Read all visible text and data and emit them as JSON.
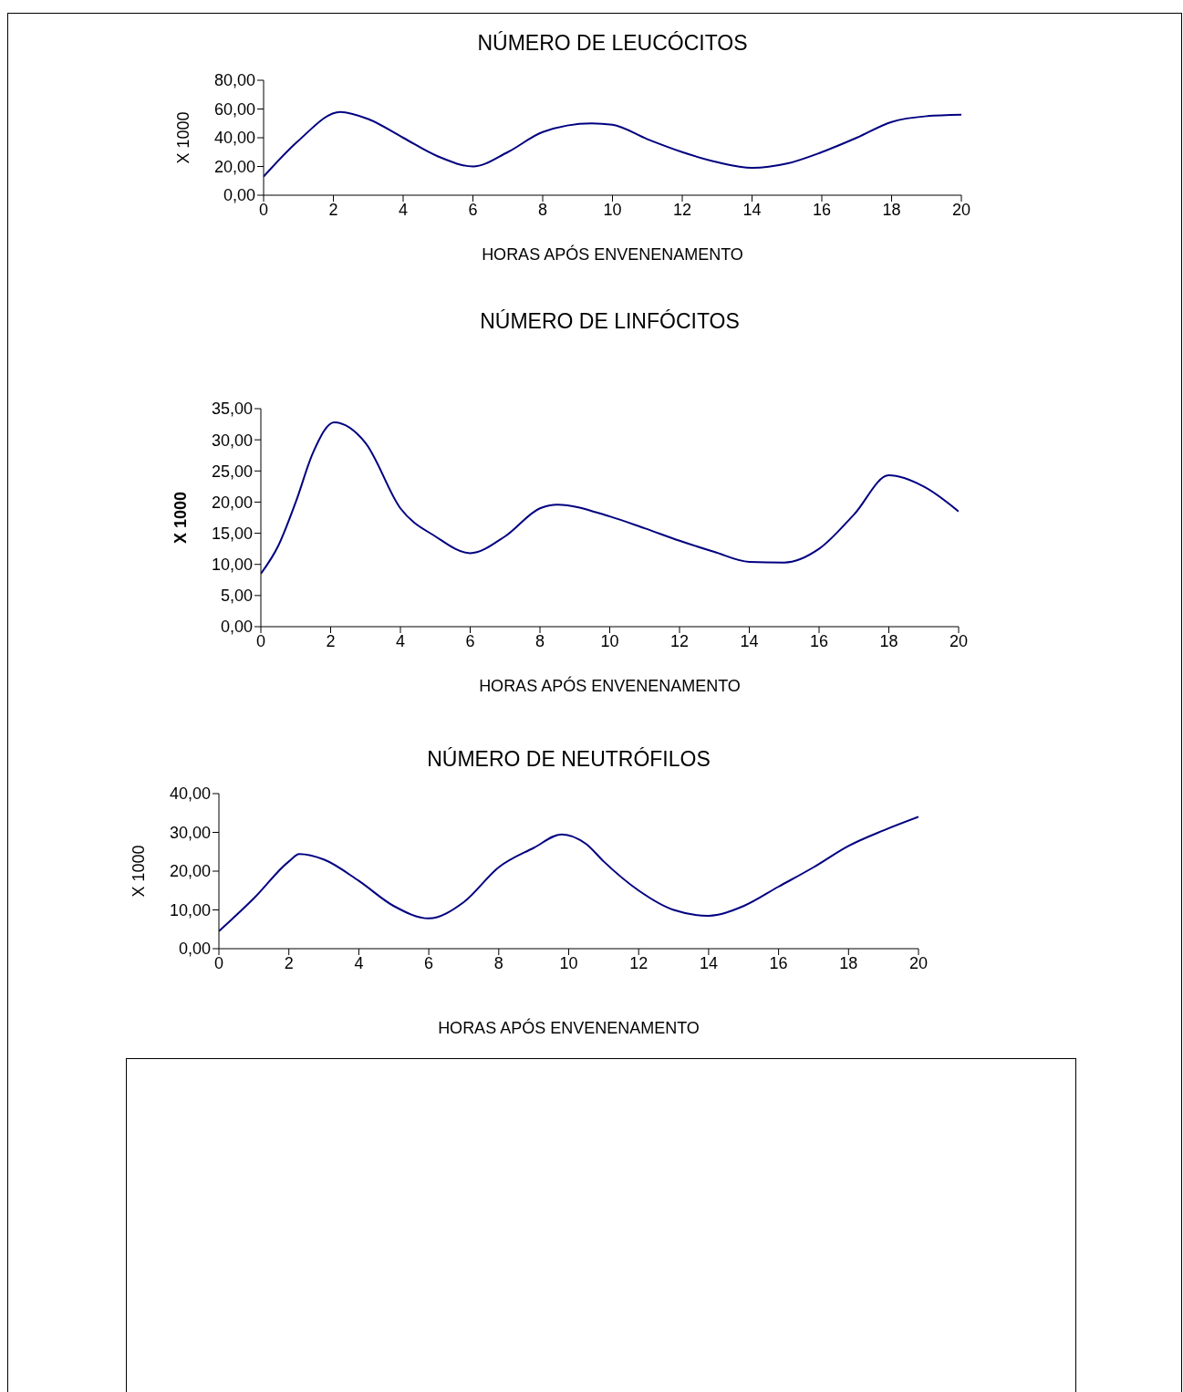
{
  "chart_data": [
    {
      "type": "line",
      "title": "NÚMERO DE LEUCÓCITOS",
      "xlabel": "HORAS APÓS ENVENENAMENTO",
      "ylabel": "X 1000",
      "color": "#000080",
      "marker": "none",
      "grid": false,
      "legend": false,
      "x": [
        0,
        1,
        2.2,
        3,
        4,
        5,
        6,
        7,
        8,
        9.4,
        10,
        11,
        12,
        13,
        14,
        15,
        16,
        17,
        18,
        19,
        20
      ],
      "values": [
        13,
        38,
        58,
        53,
        40,
        27,
        20,
        30,
        44,
        50,
        49,
        39,
        30,
        23,
        19,
        22,
        30,
        40,
        51,
        55,
        56
      ],
      "xlim": [
        0,
        20
      ],
      "xticks": [
        0,
        2,
        4,
        6,
        8,
        10,
        12,
        14,
        16,
        18,
        20
      ],
      "ylim": [
        0,
        80
      ],
      "yticks": [
        {
          "value": 0,
          "label": "0,00"
        },
        {
          "value": 20,
          "label": "20,00"
        },
        {
          "value": 40,
          "label": "40,00"
        },
        {
          "value": 60,
          "label": "60,00"
        },
        {
          "value": 80,
          "label": "80,00"
        }
      ]
    },
    {
      "type": "line",
      "title": "NÚMERO DE LINFÓCITOS",
      "xlabel": "HORAS APÓS ENVENENAMENTO",
      "ylabel": "X 1000",
      "color": "#000080",
      "marker": "none",
      "grid": false,
      "legend": false,
      "x": [
        0,
        0.5,
        1,
        1.5,
        2.1,
        3,
        4,
        5,
        6,
        7,
        8,
        8.5,
        10,
        11,
        12,
        13,
        14,
        15,
        16,
        17,
        18,
        19,
        20
      ],
      "values": [
        8.5,
        13,
        20,
        28,
        32.8,
        29.5,
        19,
        14.5,
        11.8,
        14.5,
        19,
        19.6,
        17.7,
        15.8,
        13.8,
        12,
        10.4,
        10.3,
        12.5,
        18,
        24.3,
        22.5,
        18.5
      ],
      "xlim": [
        0,
        20
      ],
      "xticks": [
        0,
        2,
        4,
        6,
        8,
        10,
        12,
        14,
        16,
        18,
        20
      ],
      "ylim": [
        0,
        35
      ],
      "yticks": [
        {
          "value": 0,
          "label": "0,00"
        },
        {
          "value": 5,
          "label": "5,00"
        },
        {
          "value": 10,
          "label": "10,00"
        },
        {
          "value": 15,
          "label": "15,00"
        },
        {
          "value": 20,
          "label": "20,00"
        },
        {
          "value": 25,
          "label": "25,00"
        },
        {
          "value": 30,
          "label": "30,00"
        },
        {
          "value": 35,
          "label": "35,00"
        }
      ]
    },
    {
      "type": "line",
      "title": "NÚMERO DE NEUTRÓFILOS",
      "xlabel": "HORAS APÓS ENVENENAMENTO",
      "ylabel": "X 1000",
      "color": "#000080",
      "marker": "none",
      "grid": false,
      "legend": false,
      "x": [
        0,
        1,
        2,
        2.3,
        3,
        4,
        5,
        6,
        7,
        8,
        9,
        9.8,
        10.5,
        11,
        12,
        13,
        14,
        15,
        16,
        17,
        18,
        19,
        20
      ],
      "values": [
        4.5,
        13,
        22.5,
        24.4,
        23,
        17.5,
        11,
        7.8,
        12,
        21,
        26,
        29.5,
        27,
        22.5,
        15,
        10,
        8.5,
        11,
        16,
        21,
        26.5,
        30.5,
        34
      ],
      "xlim": [
        0,
        20
      ],
      "xticks": [
        0,
        2,
        4,
        6,
        8,
        10,
        12,
        14,
        16,
        18,
        20
      ],
      "ylim": [
        0,
        40
      ],
      "yticks": [
        {
          "value": 0,
          "label": "0,00"
        },
        {
          "value": 10,
          "label": "10,00"
        },
        {
          "value": 20,
          "label": "20,00"
        },
        {
          "value": 30,
          "label": "30,00"
        },
        {
          "value": 40,
          "label": "40,00"
        }
      ]
    }
  ]
}
